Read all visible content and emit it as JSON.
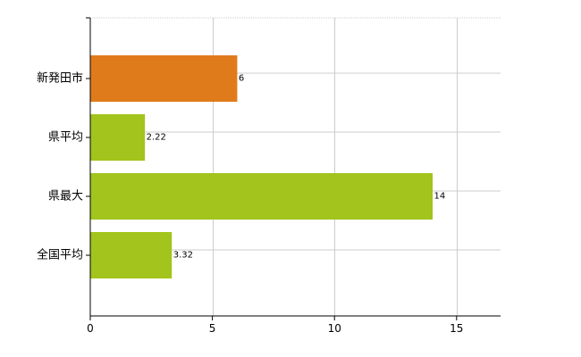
{
  "chart_data": {
    "type": "bar",
    "orientation": "horizontal",
    "categories": [
      "新発田市",
      "県平均",
      "県最大",
      "全国平均"
    ],
    "values": [
      6,
      2.22,
      14,
      3.32
    ],
    "value_labels": [
      "6",
      "2.22",
      "14",
      "3.32"
    ],
    "bar_colors": [
      "#e07b1c",
      "#a2c41c",
      "#a2c41c",
      "#a2c41c"
    ],
    "xlim": [
      0,
      16.8
    ],
    "xticks": [
      0,
      5,
      10,
      15
    ],
    "xtick_labels": [
      "0",
      "5",
      "10",
      "15"
    ],
    "grid": true,
    "legend": "none"
  }
}
